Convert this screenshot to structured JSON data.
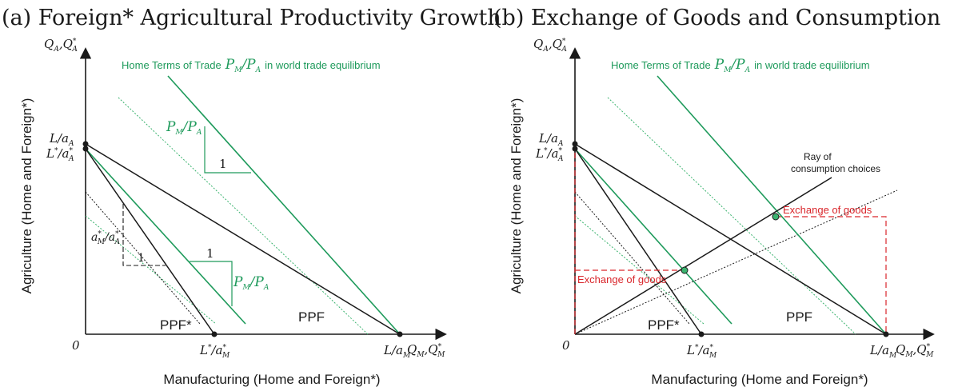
{
  "panel_a": {
    "title": "(a) Foreign* Agricultural Productivity Growth",
    "y_axis_symbol": "Q_A, Q*_A",
    "x_axis_symbol": "Q_M, Q*_M",
    "x_axis_title": "Manufacturing (Home and Foreign*)",
    "y_axis_title": "Agriculture (Home and Foreign*)",
    "origin": "0",
    "y_ticks": [
      "L/a_A",
      "L*/a*_A"
    ],
    "x_ticks": [
      "L*/a*_M",
      "L/a_M"
    ],
    "tot_label": "Home Terms of Trade",
    "tot_math": "P_M/P_A",
    "tot_suffix": "in world trade equilibrium",
    "slope_label_big": "P_M/P_A",
    "slope_label_small": "P_M/P_A",
    "slope_label_foreign": "a*_M/a*_A",
    "unit": "1",
    "ppf_home": "PPF",
    "ppf_foreign": "PPF*"
  },
  "panel_b": {
    "title": "(b) Exchange of Goods and Consumption",
    "y_axis_symbol": "Q_A, Q*_A",
    "x_axis_symbol": "Q_M, Q*_M",
    "x_axis_title": "Manufacturing (Home and Foreign*)",
    "y_axis_title": "Agriculture (Home and Foreign*)",
    "origin": "0",
    "y_ticks": [
      "L/a_A",
      "L*/a*_A"
    ],
    "x_ticks": [
      "L*/a*_M",
      "L/a_M"
    ],
    "tot_label": "Home Terms of Trade",
    "tot_math": "P_M/P_A",
    "tot_suffix": "in world trade equilibrium",
    "ray_label_line1": "Ray of",
    "ray_label_line2": "consumption choices",
    "exchange_label_1": "Exchange of goods",
    "exchange_label_2": "Exchange of goods",
    "ppf_home": "PPF",
    "ppf_foreign": "PPF*"
  },
  "colors": {
    "black": "#1a1a1a",
    "green": "#1e9a5b",
    "light_green": "#3bb36f",
    "red": "#d9262b"
  }
}
